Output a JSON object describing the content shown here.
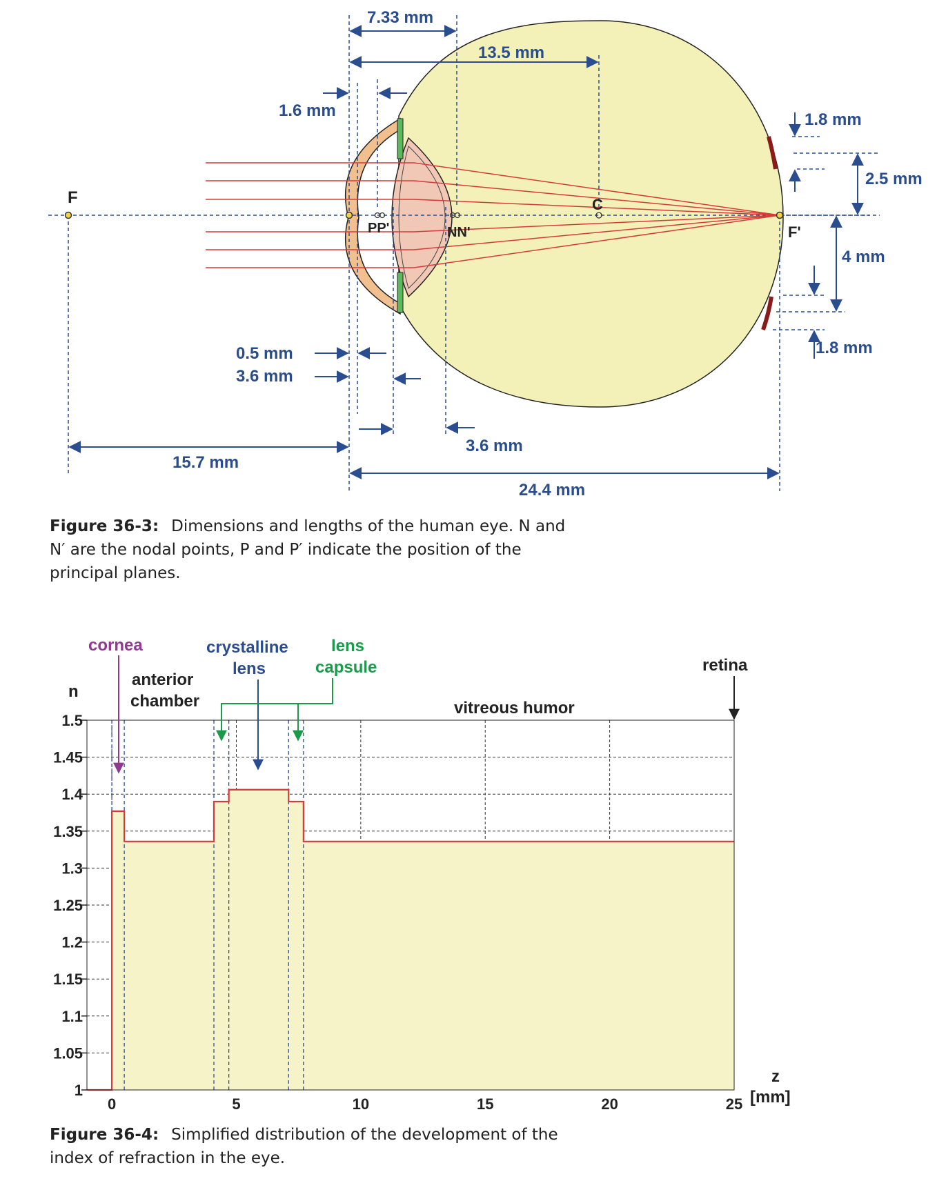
{
  "figure1": {
    "caption_label": "Figure 36-3:",
    "caption_text": "Dimensions and lengths of the human eye. N and N′ are the nodal points, P and P′ indicate the position of the principal planes.",
    "labels": {
      "F": "F",
      "F_prime": "F'",
      "C": "C",
      "PP": "PP'",
      "NN": "NN'"
    },
    "dimensions": {
      "d_7_33": "7.33 mm",
      "d_13_5": "13.5 mm",
      "d_1_6": "1.6 mm",
      "d_1_8_top": "1.8 mm",
      "d_2_5": "2.5 mm",
      "d_4": "4 mm",
      "d_1_8_bottom": "1.8 mm",
      "d_0_5": "0.5 mm",
      "d_3_6_left": "3.6 mm",
      "d_3_6_right": "3.6 mm",
      "d_15_7": "15.7 mm",
      "d_24_4": "24.4 mm"
    },
    "colors": {
      "dimension": "#2a4d8f",
      "ray": "#d63a3a",
      "eyeball": "#f3f1b8",
      "cornea": "#f2c08f",
      "lens": "#f1c8b6",
      "iris": "#5cb85c",
      "retina_mark": "#8b1a1a"
    }
  },
  "figure2": {
    "caption_label": "Figure 36-4:",
    "caption_text": "Simplified distribution of the development of the index of refraction in the eye.",
    "annotations": {
      "cornea": "cornea",
      "anterior_chamber_1": "anterior",
      "anterior_chamber_2": "chamber",
      "crystalline_1": "crystalline",
      "crystalline_2": "lens",
      "capsule_1": "lens",
      "capsule_2": "capsule",
      "vitreous": "vitreous humor",
      "retina": "retina"
    },
    "colors": {
      "cornea": "#8e3a8e",
      "crystalline": "#2a4d8f",
      "capsule": "#1a9a4a",
      "fill": "#f6f3c8",
      "line": "#d63a3a"
    }
  },
  "chart_data": {
    "type": "line",
    "xlabel_1": "z",
    "xlabel_2": "[mm]",
    "ylabel": "n",
    "xlim": [
      -1,
      25
    ],
    "ylim": [
      1,
      1.5
    ],
    "x_ticks": [
      "0",
      "5",
      "10",
      "15",
      "20",
      "25"
    ],
    "y_ticks": [
      "1",
      "1.05",
      "1.1",
      "1.15",
      "1.2",
      "1.25",
      "1.3",
      "1.35",
      "1.4",
      "1.45",
      "1.5"
    ],
    "x_tick_values": [
      0,
      5,
      10,
      15,
      20,
      25
    ],
    "y_tick_values": [
      1,
      1.05,
      1.1,
      1.15,
      1.2,
      1.25,
      1.3,
      1.35,
      1.4,
      1.45,
      1.5
    ],
    "grid": true,
    "region_lines": [
      0,
      0.5,
      4.1,
      4.7,
      7.1,
      7.7
    ],
    "series": [
      {
        "x": [
          -1,
          0,
          0,
          0.5,
          0.5,
          4.1,
          4.1,
          4.7,
          4.7,
          7.1,
          7.1,
          7.7,
          7.7,
          25
        ],
        "y": [
          1,
          1,
          1.377,
          1.377,
          1.336,
          1.336,
          1.39,
          1.39,
          1.406,
          1.406,
          1.39,
          1.39,
          1.336,
          1.336
        ]
      }
    ]
  }
}
